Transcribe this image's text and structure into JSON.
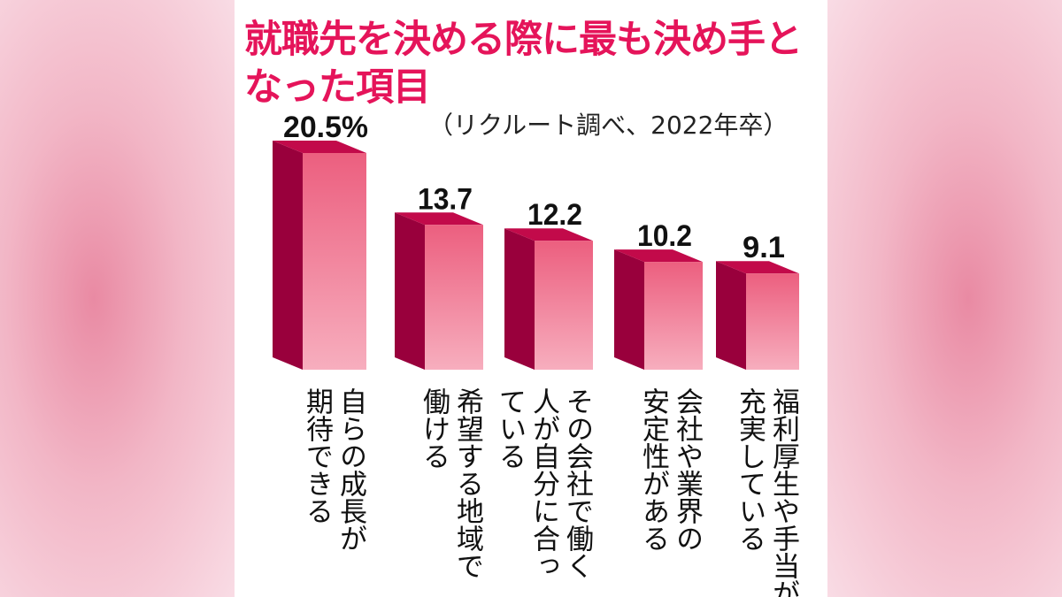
{
  "chart_data": {
    "type": "bar",
    "title": "就職先を決める際に最も決め手と\nなった項目",
    "subtitle": "（リクルート調べ、2022年卒）",
    "categories": [
      "自らの成長が期待できる",
      "希望する地域で働ける",
      "その会社で働く人が自分に合っている",
      "会社や業界の安定性がある",
      "福利厚生や手当が充実している"
    ],
    "category_lines": [
      [
        "自らの成長が",
        "期待できる"
      ],
      [
        "希望する地域で",
        "働ける"
      ],
      [
        "その会社で働く",
        "人が自分に合っ",
        "ている"
      ],
      [
        "会社や業界の",
        "安定性がある"
      ],
      [
        "福利厚生や手当が",
        "充実している"
      ]
    ],
    "values": [
      20.5,
      13.7,
      12.2,
      10.2,
      9.1
    ],
    "value_labels": [
      "20.5%",
      "13.7",
      "12.2",
      "10.2",
      "9.1"
    ],
    "ylim": [
      0,
      20.5
    ],
    "grid": false,
    "colors": {
      "front_top": "#ec5f7f",
      "front_bottom": "#f7aebe",
      "side": "#99003c",
      "top": "#c20a4a",
      "title": "#e5145a"
    }
  }
}
